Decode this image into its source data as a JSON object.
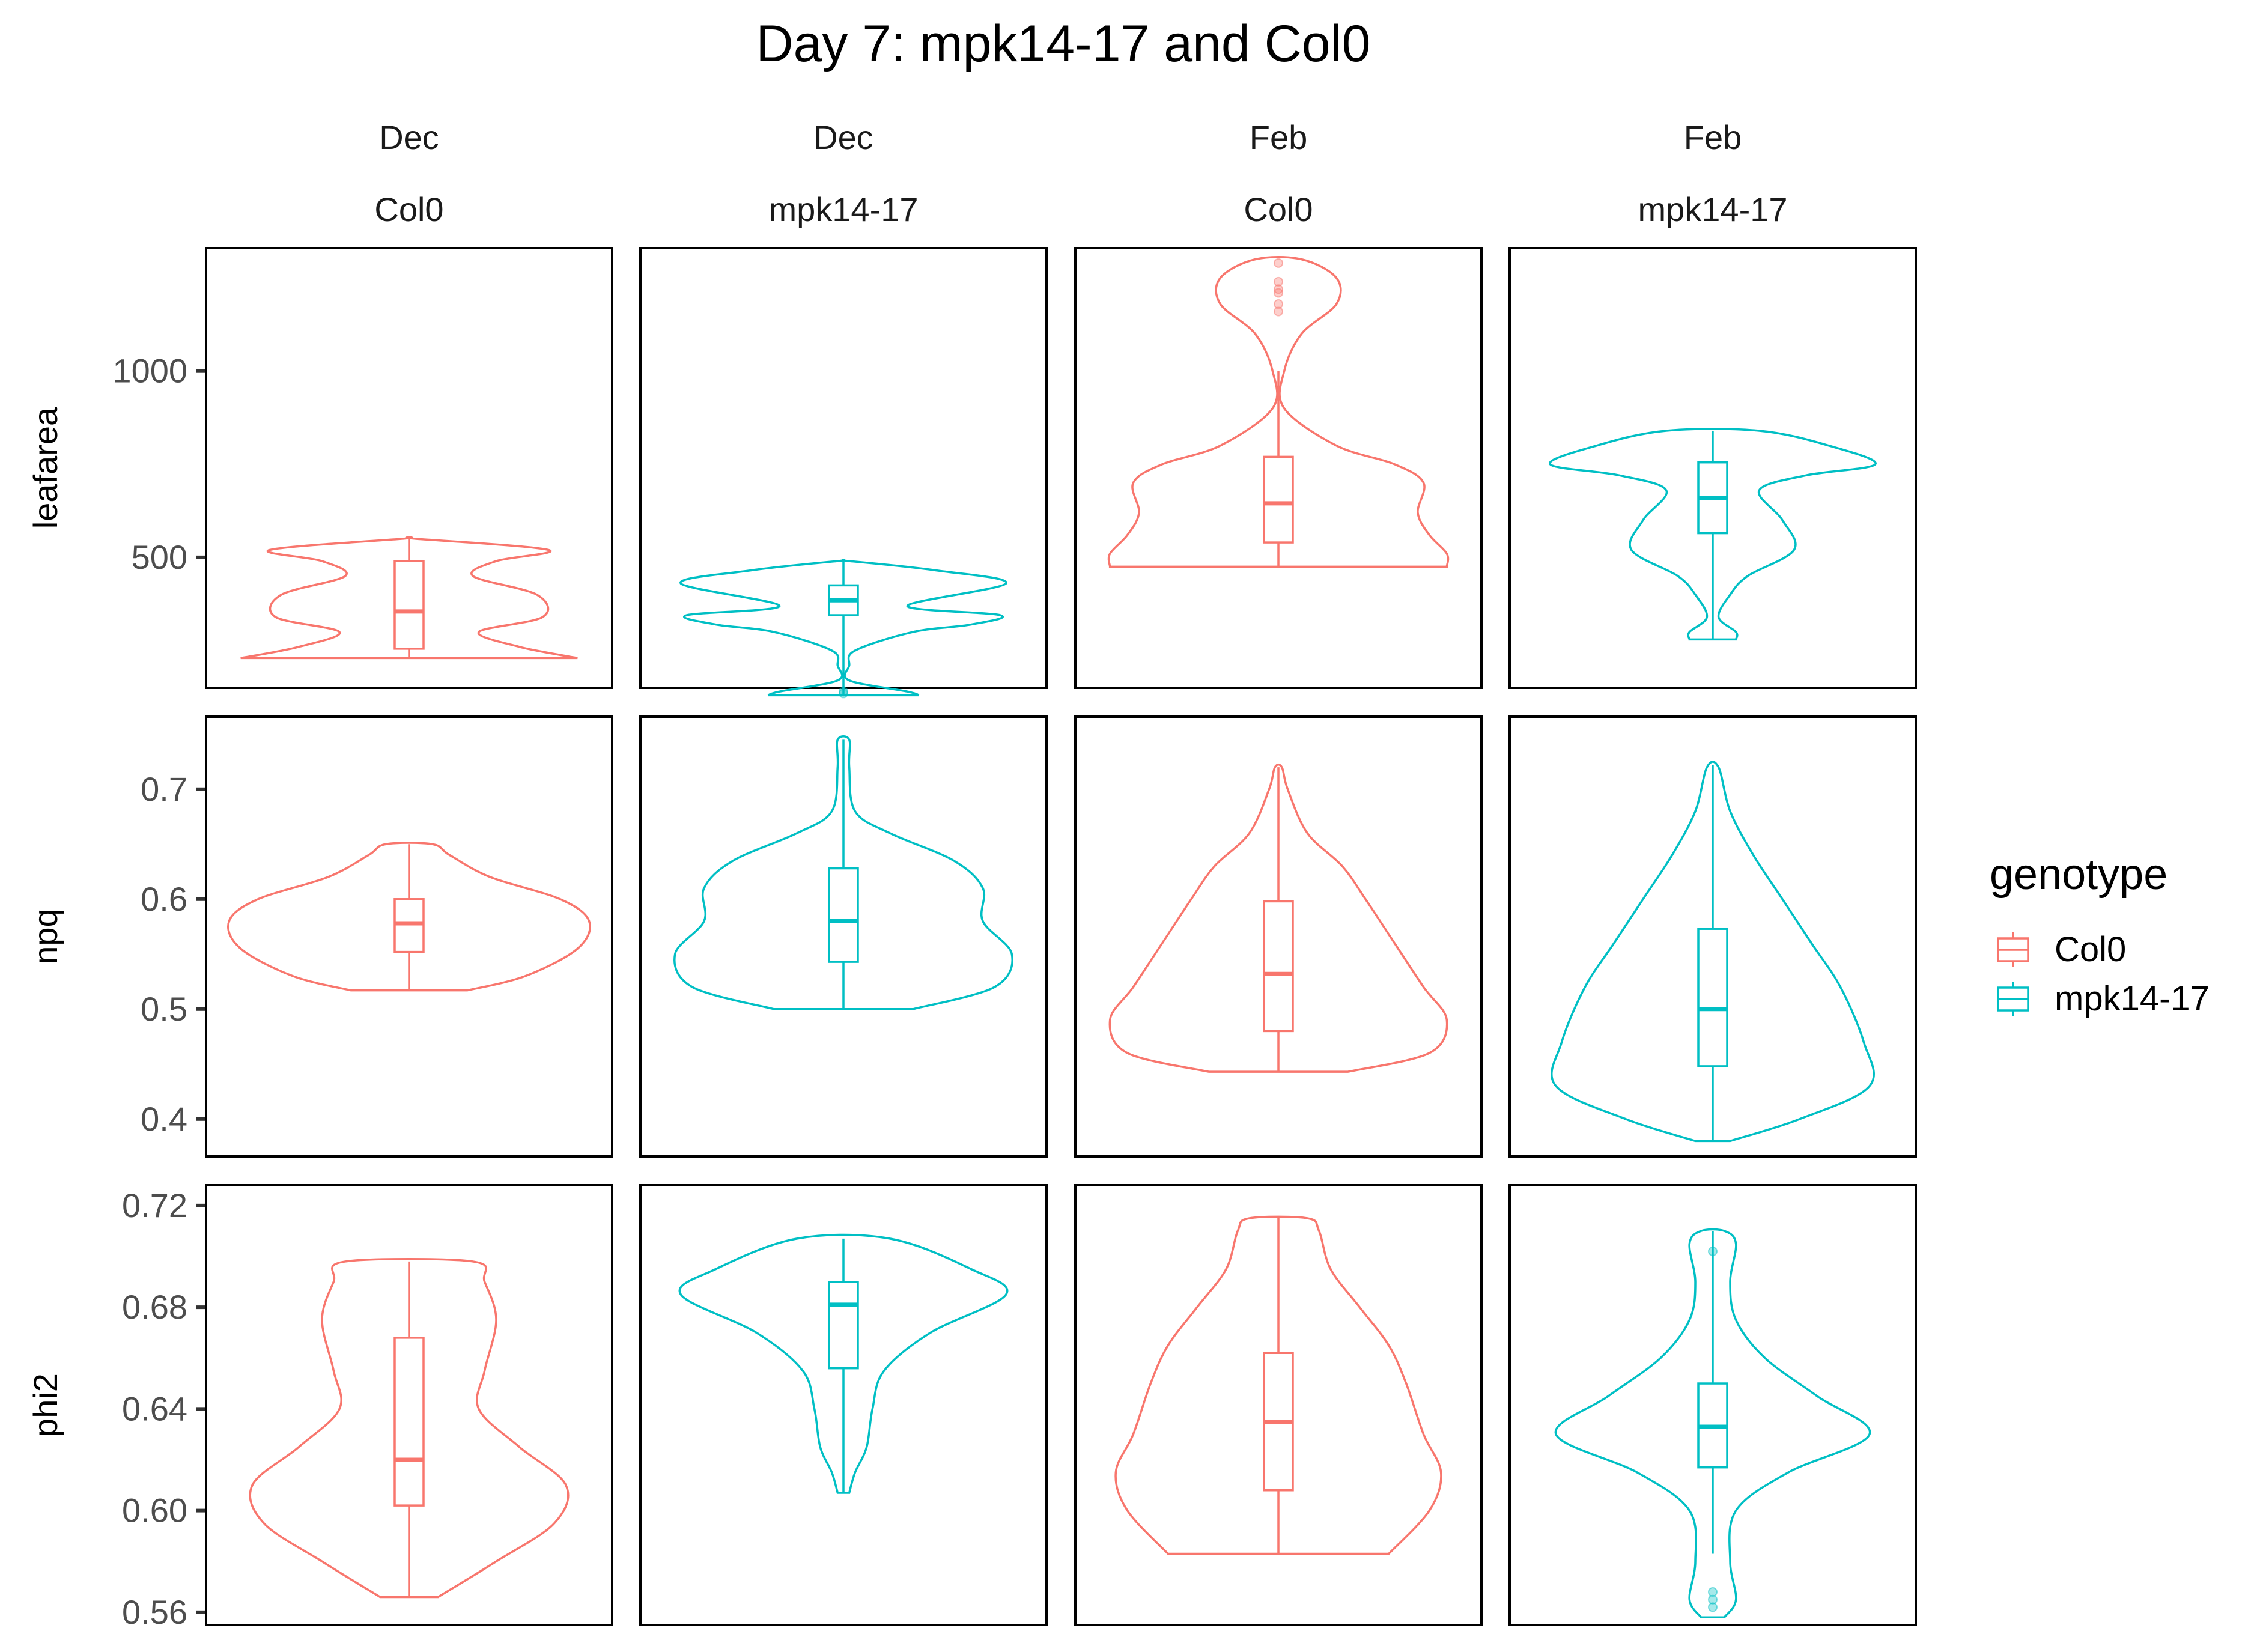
{
  "chart_data": {
    "type": "violin",
    "title": "Day 7: mpk14-17 and Col0",
    "columns": [
      {
        "month": "Dec",
        "genotype": "Col0"
      },
      {
        "month": "Dec",
        "genotype": "mpk14-17"
      },
      {
        "month": "Feb",
        "genotype": "Col0"
      },
      {
        "month": "Feb",
        "genotype": "mpk14-17"
      }
    ],
    "rows": [
      {
        "variable": "leafarea",
        "ylim": [
          150,
          1330
        ],
        "ticks": [
          500,
          1000
        ],
        "tick_labels": [
          "500",
          "1000"
        ]
      },
      {
        "variable": "npq",
        "ylim": [
          0.366,
          0.766
        ],
        "ticks": [
          0.4,
          0.5,
          0.6,
          0.7
        ],
        "tick_labels": [
          "0.4",
          "0.5",
          "0.6",
          "0.7"
        ]
      },
      {
        "variable": "phi2",
        "ylim": [
          0.555,
          0.728
        ],
        "ticks": [
          0.56,
          0.6,
          0.64,
          0.68,
          0.72
        ],
        "tick_labels": [
          "0.56",
          "0.60",
          "0.64",
          "0.68",
          "0.72"
        ]
      }
    ],
    "legend": {
      "title": "genotype",
      "position": "right",
      "entries": [
        {
          "label": "Col0",
          "color": "#F8766D"
        },
        {
          "label": "mpk14-17",
          "color": "#00BFC4"
        }
      ]
    },
    "panels": [
      {
        "row": 0,
        "col": 0,
        "genotype": "Col0",
        "violin": [
          [
            230,
            145
          ],
          [
            260,
            95
          ],
          [
            300,
            60
          ],
          [
            340,
            115
          ],
          [
            400,
            110
          ],
          [
            450,
            55
          ],
          [
            490,
            75
          ],
          [
            520,
            120
          ],
          [
            550,
            5
          ]
        ],
        "box": {
          "q1": 255,
          "median": 355,
          "q3": 490,
          "whisker_low": 230,
          "whisker_high": 550
        },
        "outliers": []
      },
      {
        "row": 0,
        "col": 1,
        "genotype": "mpk14-17",
        "violin": [
          [
            130,
            65
          ],
          [
            140,
            55
          ],
          [
            170,
            5
          ],
          [
            210,
            5
          ],
          [
            250,
            10
          ],
          [
            300,
            60
          ],
          [
            320,
            110
          ],
          [
            345,
            135
          ],
          [
            370,
            55
          ],
          [
            430,
            140
          ],
          [
            465,
            80
          ],
          [
            490,
            5
          ]
        ],
        "box": {
          "q1": 345,
          "median": 385,
          "q3": 425,
          "whisker_low": 130,
          "whisker_high": 490
        },
        "outliers": [
          135,
          140
        ]
      },
      {
        "row": 0,
        "col": 2,
        "genotype": "Col0",
        "violin": [
          [
            475,
            145
          ],
          [
            510,
            145
          ],
          [
            560,
            130
          ],
          [
            620,
            120
          ],
          [
            700,
            125
          ],
          [
            750,
            100
          ],
          [
            800,
            50
          ],
          [
            900,
            5
          ],
          [
            1000,
            5
          ],
          [
            1100,
            20
          ],
          [
            1180,
            50
          ],
          [
            1250,
            50
          ],
          [
            1300,
            20
          ]
        ],
        "box": {
          "q1": 540,
          "median": 645,
          "q3": 770,
          "whisker_low": 475,
          "whisker_high": 1000
        },
        "outliers": [
          1160,
          1180,
          1210,
          1220,
          1240,
          1290
        ]
      },
      {
        "row": 0,
        "col": 3,
        "genotype": "mpk14-17",
        "violin": [
          [
            280,
            20
          ],
          [
            300,
            20
          ],
          [
            340,
            5
          ],
          [
            400,
            15
          ],
          [
            450,
            30
          ],
          [
            520,
            70
          ],
          [
            600,
            60
          ],
          [
            680,
            40
          ],
          [
            720,
            80
          ],
          [
            750,
            140
          ],
          [
            800,
            100
          ],
          [
            840,
            40
          ]
        ],
        "box": {
          "q1": 565,
          "median": 660,
          "q3": 755,
          "whisker_low": 280,
          "whisker_high": 840
        },
        "outliers": []
      },
      {
        "row": 1,
        "col": 0,
        "genotype": "Col0",
        "violin": [
          [
            0.517,
            50
          ],
          [
            0.53,
            100
          ],
          [
            0.555,
            145
          ],
          [
            0.58,
            155
          ],
          [
            0.6,
            130
          ],
          [
            0.62,
            70
          ],
          [
            0.64,
            35
          ],
          [
            0.65,
            20
          ]
        ],
        "box": {
          "q1": 0.552,
          "median": 0.578,
          "q3": 0.6,
          "whisker_low": 0.517,
          "whisker_high": 0.65
        },
        "outliers": []
      },
      {
        "row": 1,
        "col": 1,
        "genotype": "mpk14-17",
        "violin": [
          [
            0.5,
            60
          ],
          [
            0.52,
            130
          ],
          [
            0.55,
            145
          ],
          [
            0.58,
            120
          ],
          [
            0.61,
            120
          ],
          [
            0.635,
            95
          ],
          [
            0.66,
            40
          ],
          [
            0.68,
            10
          ],
          [
            0.72,
            5
          ],
          [
            0.745,
            5
          ]
        ],
        "box": {
          "q1": 0.543,
          "median": 0.58,
          "q3": 0.628,
          "whisker_low": 0.5,
          "whisker_high": 0.745
        },
        "outliers": []
      },
      {
        "row": 1,
        "col": 2,
        "genotype": "Col0",
        "violin": [
          [
            0.443,
            60
          ],
          [
            0.46,
            130
          ],
          [
            0.49,
            145
          ],
          [
            0.52,
            125
          ],
          [
            0.56,
            100
          ],
          [
            0.6,
            75
          ],
          [
            0.63,
            55
          ],
          [
            0.66,
            25
          ],
          [
            0.7,
            8
          ],
          [
            0.72,
            3
          ]
        ],
        "box": {
          "q1": 0.48,
          "median": 0.532,
          "q3": 0.598,
          "whisker_low": 0.443,
          "whisker_high": 0.72
        },
        "outliers": []
      },
      {
        "row": 1,
        "col": 3,
        "genotype": "mpk14-17",
        "violin": [
          [
            0.38,
            15
          ],
          [
            0.4,
            75
          ],
          [
            0.43,
            135
          ],
          [
            0.47,
            130
          ],
          [
            0.52,
            110
          ],
          [
            0.56,
            85
          ],
          [
            0.6,
            60
          ],
          [
            0.64,
            35
          ],
          [
            0.68,
            15
          ],
          [
            0.72,
            5
          ]
        ],
        "box": {
          "q1": 0.448,
          "median": 0.5,
          "q3": 0.573,
          "whisker_low": 0.38,
          "whisker_high": 0.722
        },
        "outliers": []
      },
      {
        "row": 2,
        "col": 0,
        "genotype": "Col0",
        "violin": [
          [
            0.566,
            25
          ],
          [
            0.58,
            75
          ],
          [
            0.595,
            125
          ],
          [
            0.61,
            135
          ],
          [
            0.625,
            95
          ],
          [
            0.64,
            60
          ],
          [
            0.655,
            65
          ],
          [
            0.675,
            75
          ],
          [
            0.69,
            65
          ],
          [
            0.698,
            55
          ]
        ],
        "box": {
          "q1": 0.602,
          "median": 0.62,
          "q3": 0.668,
          "whisker_low": 0.566,
          "whisker_high": 0.698
        },
        "outliers": []
      },
      {
        "row": 2,
        "col": 1,
        "genotype": "mpk14-17",
        "violin": [
          [
            0.607,
            5
          ],
          [
            0.615,
            10
          ],
          [
            0.625,
            20
          ],
          [
            0.64,
            25
          ],
          [
            0.655,
            35
          ],
          [
            0.67,
            75
          ],
          [
            0.685,
            140
          ],
          [
            0.695,
            110
          ],
          [
            0.707,
            40
          ]
        ],
        "box": {
          "q1": 0.656,
          "median": 0.681,
          "q3": 0.69,
          "whisker_low": 0.607,
          "whisker_high": 0.707
        },
        "outliers": []
      },
      {
        "row": 2,
        "col": 2,
        "genotype": "Col0",
        "violin": [
          [
            0.583,
            95
          ],
          [
            0.6,
            130
          ],
          [
            0.615,
            140
          ],
          [
            0.63,
            125
          ],
          [
            0.65,
            110
          ],
          [
            0.665,
            95
          ],
          [
            0.68,
            70
          ],
          [
            0.695,
            45
          ],
          [
            0.71,
            35
          ],
          [
            0.715,
            25
          ]
        ],
        "box": {
          "q1": 0.608,
          "median": 0.635,
          "q3": 0.662,
          "whisker_low": 0.583,
          "whisker_high": 0.715
        },
        "outliers": []
      },
      {
        "row": 2,
        "col": 3,
        "genotype": "mpk14-17",
        "violin": [
          [
            0.558,
            10
          ],
          [
            0.565,
            20
          ],
          [
            0.58,
            15
          ],
          [
            0.6,
            20
          ],
          [
            0.615,
            65
          ],
          [
            0.63,
            135
          ],
          [
            0.645,
            90
          ],
          [
            0.66,
            45
          ],
          [
            0.675,
            20
          ],
          [
            0.69,
            15
          ],
          [
            0.705,
            20
          ],
          [
            0.71,
            10
          ]
        ],
        "box": {
          "q1": 0.617,
          "median": 0.633,
          "q3": 0.65,
          "whisker_low": 0.583,
          "whisker_high": 0.71
        },
        "outliers": [
          0.562,
          0.565,
          0.568,
          0.702
        ]
      }
    ]
  }
}
